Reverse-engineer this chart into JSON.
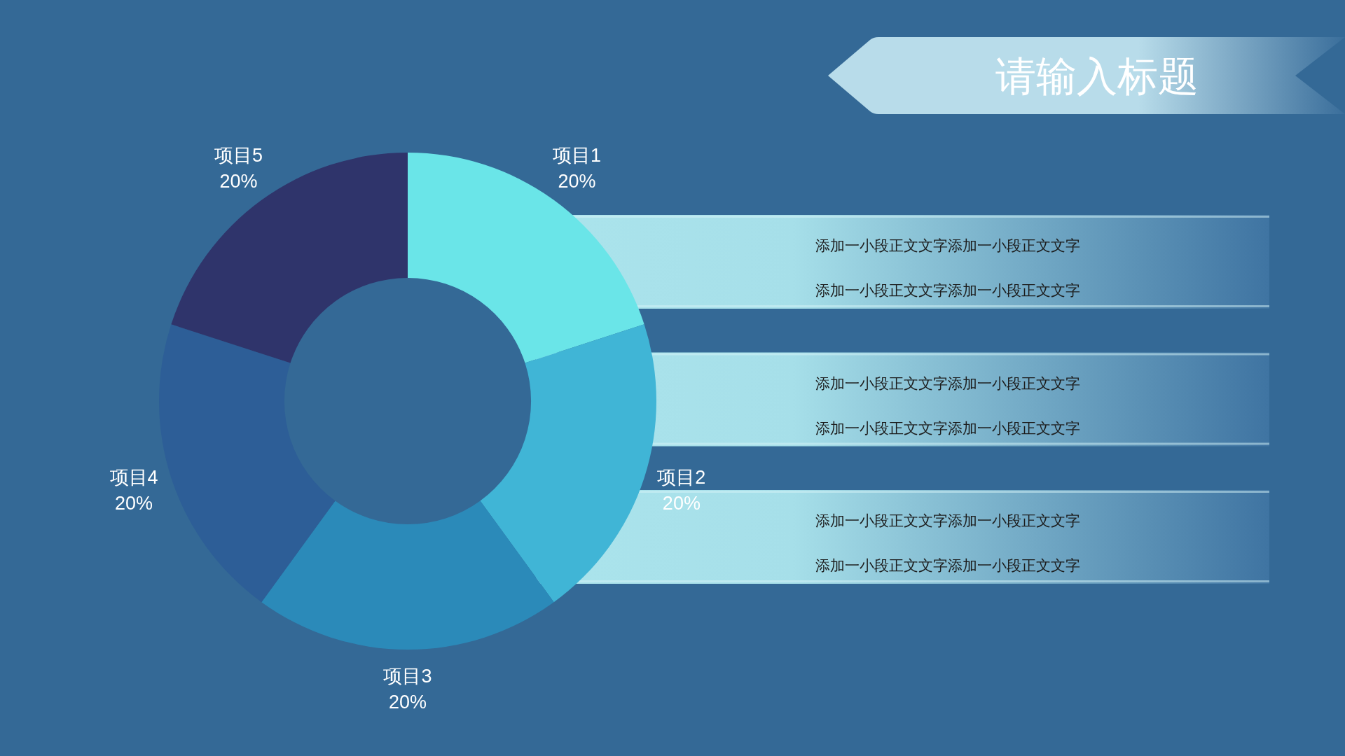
{
  "chart_data": {
    "type": "donut",
    "title": "请输入标题",
    "categories": [
      "项目1",
      "项目2",
      "项目3",
      "项目4",
      "项目5"
    ],
    "values": [
      20,
      20,
      20,
      20,
      20
    ],
    "value_labels": [
      "20%",
      "20%",
      "20%",
      "20%",
      "20%"
    ],
    "colors": [
      "#6ae5e8",
      "#40b5d6",
      "#2b8ab9",
      "#2d5e97",
      "#2f346b"
    ],
    "annotations": [
      "添加一小段正文文字添加一小段正文文字",
      "添加一小段正文文字添加一小段正文文字",
      "添加一小段正文文字添加一小段正文文字",
      "添加一小段正文文字添加一小段正文文字",
      "添加一小段正文文字添加一小段正文文字",
      "添加一小段正文文字添加一小段正文文字"
    ]
  }
}
